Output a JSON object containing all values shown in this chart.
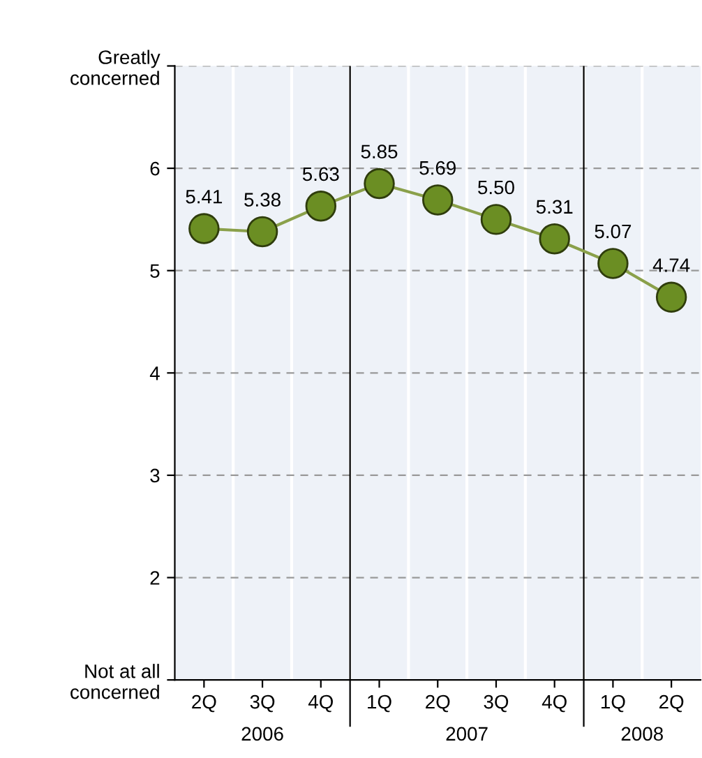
{
  "chart_data": {
    "type": "line",
    "categories": [
      "2Q",
      "3Q",
      "4Q",
      "1Q",
      "2Q",
      "3Q",
      "4Q",
      "1Q",
      "2Q"
    ],
    "series": [
      {
        "color": "#6b8e23",
        "values": [
          5.41,
          5.38,
          5.63,
          5.85,
          5.69,
          5.5,
          5.31,
          5.07,
          4.74
        ],
        "value_labels": [
          "5.41",
          "5.38",
          "5.63",
          "5.85",
          "5.69",
          "5.50",
          "5.31",
          "5.07",
          "4.74"
        ]
      }
    ],
    "marker": "circle",
    "line_style": "solid",
    "grid": "y",
    "ylim": [
      1,
      7
    ],
    "yticks": [
      {
        "value": 1,
        "label": "Not at all\nconcerned"
      },
      2,
      3,
      4,
      5,
      6,
      {
        "value": 7,
        "label": "Greatly\nconcerned"
      }
    ],
    "annotations": [
      "2006",
      "2007",
      "2008"
    ]
  }
}
